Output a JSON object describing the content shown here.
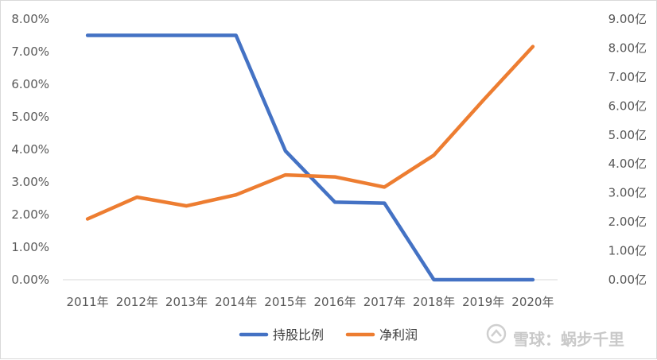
{
  "chart_data": {
    "type": "line",
    "categories": [
      "2011年",
      "2012年",
      "2013年",
      "2014年",
      "2015年",
      "2016年",
      "2017年",
      "2018年",
      "2019年",
      "2020年"
    ],
    "series": [
      {
        "name": "持股比例",
        "axis": "left",
        "color": "#4472c4",
        "values": [
          7.5,
          7.5,
          7.5,
          7.5,
          3.95,
          2.38,
          2.35,
          0.0,
          0.0,
          0.0
        ]
      },
      {
        "name": "净利润",
        "axis": "right",
        "color": "#ed7d31",
        "values": [
          2.1,
          2.85,
          2.55,
          2.93,
          3.62,
          3.55,
          3.2,
          4.3,
          6.2,
          8.05
        ]
      }
    ],
    "y_left": {
      "ylim": [
        0,
        8
      ],
      "ticks": [
        "0.00%",
        "1.00%",
        "2.00%",
        "3.00%",
        "4.00%",
        "5.00%",
        "6.00%",
        "7.00%",
        "8.00%"
      ]
    },
    "y_right": {
      "ylim": [
        0,
        9
      ],
      "ticks": [
        "0.00亿",
        "1.00亿",
        "2.00亿",
        "3.00亿",
        "4.00亿",
        "5.00亿",
        "6.00亿",
        "7.00亿",
        "8.00亿",
        "9.00亿"
      ]
    },
    "legend": "bottom",
    "grid": false
  },
  "watermark": {
    "text": "雪球：蜗步千里",
    "icon": "snowball-logo-icon"
  }
}
